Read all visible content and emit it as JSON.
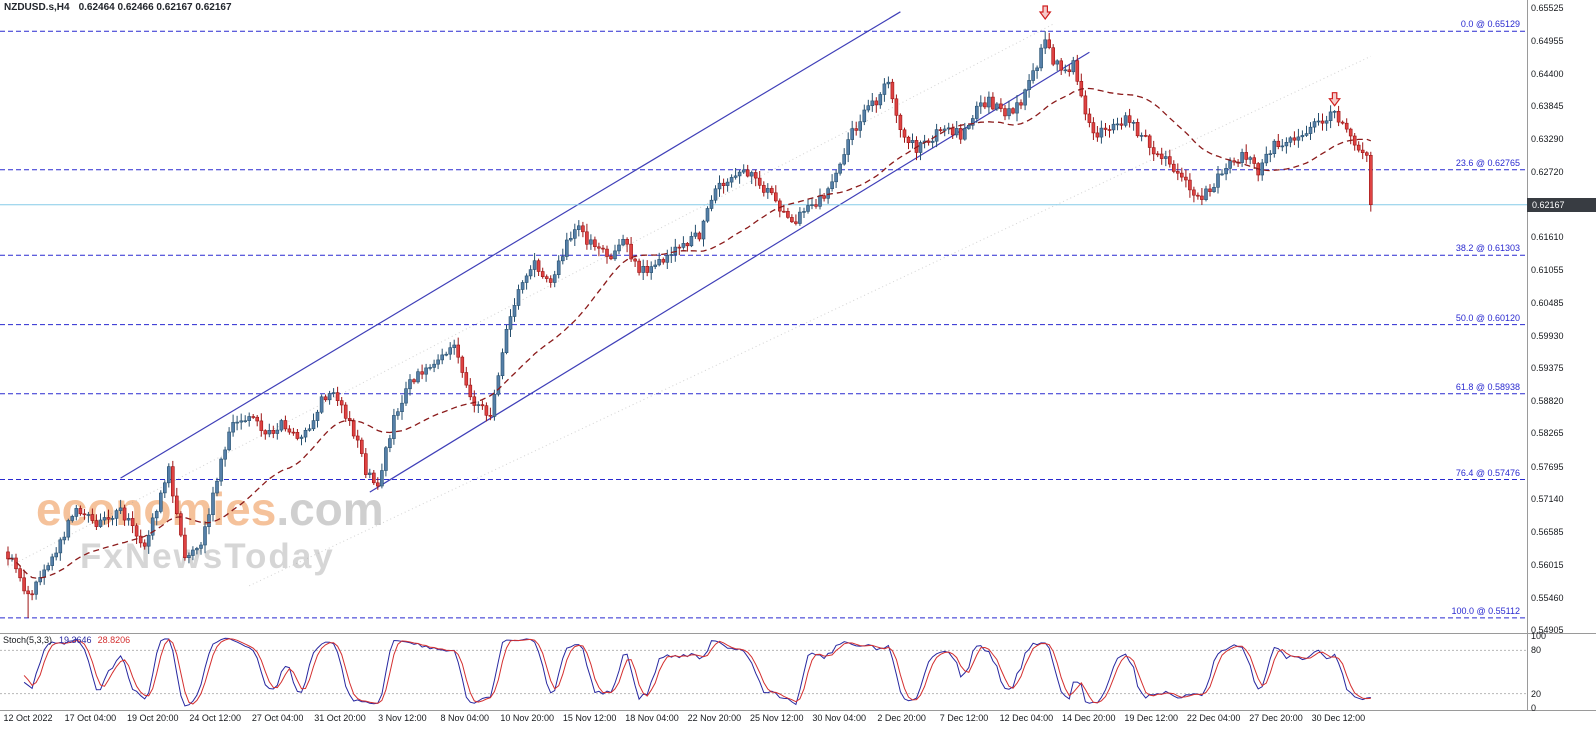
{
  "header": {
    "symbol": "NZDUSD.s,H4",
    "ohlc": "0.62464 0.62466 0.62167 0.62167"
  },
  "watermark": {
    "brand": "economies",
    "brand_suffix": ".com",
    "subtitle": "FxNewsToday"
  },
  "price_tag": {
    "value": "0.62167"
  },
  "chart_data": {
    "type": "candlestick",
    "symbol": "NZDUSD.s",
    "timeframe": "H4",
    "title": "NZDUSD.s,H4",
    "ohlc": {
      "open": 0.62464,
      "high": 0.62466,
      "low": 0.62167,
      "close": 0.62167
    },
    "current_price": 0.62167,
    "candles_count": 340,
    "y_axis": {
      "price_top": 0.65662,
      "price_bottom": 0.54855,
      "labels": [
        "0.65525",
        "0.64955",
        "0.64400",
        "0.63845",
        "0.63290",
        "0.62720",
        "0.61610",
        "0.61055",
        "0.60485",
        "0.59930",
        "0.59375",
        "0.58820",
        "0.58265",
        "0.57695",
        "0.57140",
        "0.56585",
        "0.56015",
        "0.55460",
        "0.54905"
      ]
    },
    "x_axis": {
      "labels": [
        "12 Oct 2022",
        "17 Oct 04:00",
        "19 Oct 20:00",
        "24 Oct 12:00",
        "27 Oct 04:00",
        "31 Oct 20:00",
        "3 Nov 12:00",
        "8 Nov 04:00",
        "10 Nov 20:00",
        "15 Nov 12:00",
        "18 Nov 04:00",
        "22 Nov 20:00",
        "25 Nov 12:00",
        "30 Nov 04:00",
        "2 Dec 20:00",
        "7 Dec 12:00",
        "12 Dec 04:00",
        "14 Dec 20:00",
        "19 Dec 12:00",
        "22 Dec 04:00",
        "27 Dec 20:00",
        "30 Dec 12:00"
      ]
    },
    "fib_levels": [
      {
        "label": "0.0",
        "price": 0.65129,
        "text": "0.0 @ 0.65129"
      },
      {
        "label": "23.6",
        "price": 0.62765,
        "text": "23.6 @ 0.62765"
      },
      {
        "label": "38.2",
        "price": 0.61303,
        "text": "38.2 @ 0.61303"
      },
      {
        "label": "50.0",
        "price": 0.6012,
        "text": "50.0 @ 0.60120"
      },
      {
        "label": "61.8",
        "price": 0.58938,
        "text": "61.8 @ 0.58938"
      },
      {
        "label": "76.4",
        "price": 0.57476,
        "text": "76.4 @ 0.57476"
      },
      {
        "label": "100.0",
        "price": 0.55112,
        "text": "100.0 @ 0.55112"
      }
    ],
    "channel": {
      "upper": [
        [
          28,
          0.575
        ],
        [
          222,
          0.6546
        ]
      ],
      "lower": [
        [
          90,
          0.5726
        ],
        [
          269,
          0.6477
        ]
      ]
    },
    "guide_lines": [
      [
        [
          0,
          0.5598
        ],
        [
          260,
          0.6525
        ]
      ],
      [
        [
          60,
          0.5566
        ],
        [
          339,
          0.647
        ]
      ]
    ],
    "arrows": [
      {
        "index": 258,
        "price": 0.6556
      },
      {
        "index": 330,
        "price": 0.6408
      }
    ],
    "waypoints": [
      [
        0,
        0.5619
      ],
      [
        5,
        0.5548
      ],
      [
        9,
        0.5588
      ],
      [
        13,
        0.564
      ],
      [
        17,
        0.57
      ],
      [
        22,
        0.567
      ],
      [
        28,
        0.5695
      ],
      [
        34,
        0.5636
      ],
      [
        40,
        0.5764
      ],
      [
        44,
        0.5619
      ],
      [
        48,
        0.5644
      ],
      [
        51,
        0.5721
      ],
      [
        55,
        0.5832
      ],
      [
        60,
        0.5858
      ],
      [
        64,
        0.5824
      ],
      [
        68,
        0.5841
      ],
      [
        73,
        0.5815
      ],
      [
        78,
        0.5883
      ],
      [
        81,
        0.5892
      ],
      [
        85,
        0.5849
      ],
      [
        89,
        0.5764
      ],
      [
        92,
        0.5738
      ],
      [
        96,
        0.5849
      ],
      [
        100,
        0.5917
      ],
      [
        104,
        0.5934
      ],
      [
        107,
        0.5943
      ],
      [
        111,
        0.5986
      ],
      [
        115,
        0.5883
      ],
      [
        120,
        0.5858
      ],
      [
        124,
        0.6003
      ],
      [
        127,
        0.6071
      ],
      [
        131,
        0.6114
      ],
      [
        135,
        0.6088
      ],
      [
        139,
        0.6148
      ],
      [
        142,
        0.6174
      ],
      [
        146,
        0.6139
      ],
      [
        150,
        0.6131
      ],
      [
        153,
        0.6157
      ],
      [
        157,
        0.6105
      ],
      [
        161,
        0.6114
      ],
      [
        165,
        0.6139
      ],
      [
        168,
        0.6148
      ],
      [
        172,
        0.6165
      ],
      [
        176,
        0.6242
      ],
      [
        180,
        0.6267
      ],
      [
        183,
        0.6276
      ],
      [
        187,
        0.625
      ],
      [
        191,
        0.6225
      ],
      [
        195,
        0.6182
      ],
      [
        198,
        0.6208
      ],
      [
        202,
        0.6225
      ],
      [
        206,
        0.6267
      ],
      [
        209,
        0.6327
      ],
      [
        213,
        0.637
      ],
      [
        217,
        0.6404
      ],
      [
        219,
        0.643
      ],
      [
        222,
        0.6344
      ],
      [
        226,
        0.631
      ],
      [
        229,
        0.6327
      ],
      [
        233,
        0.6353
      ],
      [
        237,
        0.6336
      ],
      [
        241,
        0.6378
      ],
      [
        244,
        0.6395
      ],
      [
        248,
        0.637
      ],
      [
        252,
        0.6387
      ],
      [
        256,
        0.6455
      ],
      [
        258,
        0.6498
      ],
      [
        260,
        0.6464
      ],
      [
        263,
        0.6446
      ],
      [
        265,
        0.6455
      ],
      [
        268,
        0.6378
      ],
      [
        270,
        0.6336
      ],
      [
        274,
        0.6353
      ],
      [
        278,
        0.6361
      ],
      [
        282,
        0.6336
      ],
      [
        285,
        0.631
      ],
      [
        289,
        0.6293
      ],
      [
        293,
        0.625
      ],
      [
        297,
        0.6233
      ],
      [
        300,
        0.625
      ],
      [
        304,
        0.6293
      ],
      [
        308,
        0.6301
      ],
      [
        311,
        0.6276
      ],
      [
        315,
        0.6319
      ],
      [
        319,
        0.6327
      ],
      [
        323,
        0.6336
      ],
      [
        326,
        0.6361
      ],
      [
        330,
        0.637
      ],
      [
        334,
        0.6327
      ],
      [
        336,
        0.631
      ],
      [
        338,
        0.6301
      ],
      [
        339,
        0.62167
      ]
    ],
    "stochastic": {
      "name": "Stoch(5,3,3)",
      "main_value": "19.3646",
      "signal_value": "28.8206",
      "levels": [
        "100",
        "80",
        "20",
        "0"
      ],
      "dashed_levels": [
        80,
        20
      ]
    },
    "colors": {
      "up_fill": "#557fa8",
      "up_stroke": "#27506f",
      "down_fill": "#de4242",
      "down_stroke": "#9c1414",
      "ma": "#8b1a1a",
      "channel": "#3f3fb8",
      "fib": "#2a2ad0",
      "price_line": "#86cbe8",
      "price_tag_bg": "#383c42",
      "stoch_main": "#2828a0",
      "stoch_signal": "#d43030",
      "arrow": "#d02020",
      "grid": "#9a9a9a"
    }
  }
}
